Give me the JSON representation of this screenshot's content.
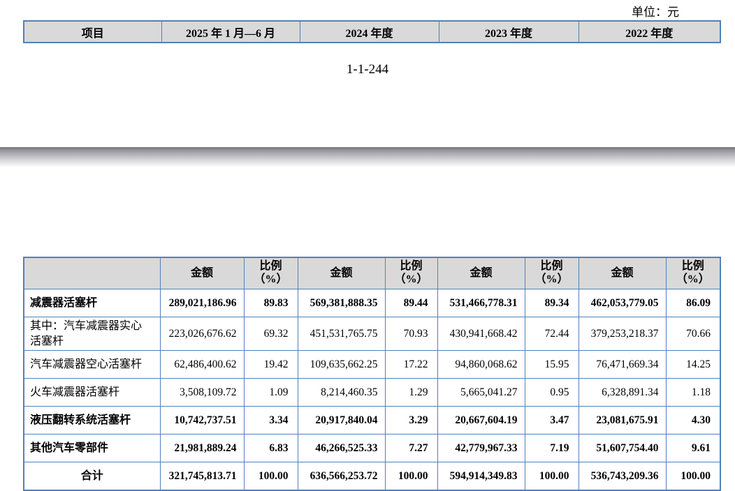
{
  "unit_label": "单位：元",
  "page_number": "1-1-244",
  "colors": {
    "table_border": "#4f81bd",
    "header_bg": "#d9d9d9"
  },
  "top_table": {
    "headers": [
      "项目",
      "2025 年 1 月—6 月",
      "2024 年度",
      "2023 年度",
      "2022 年度"
    ]
  },
  "main_table": {
    "amount_label": "金额",
    "ratio_label_line1": "比例",
    "ratio_label_line2": "（%）",
    "rows": [
      {
        "label": "减震器活塞杆",
        "bold": true,
        "center": false,
        "values": [
          "289,021,186.96",
          "89.83",
          "569,381,888.35",
          "89.44",
          "531,466,778.31",
          "89.34",
          "462,053,779.05",
          "86.09"
        ]
      },
      {
        "label": "其中：汽车减震器实心活塞杆",
        "bold": false,
        "center": false,
        "values": [
          "223,026,676.62",
          "69.32",
          "451,531,765.75",
          "70.93",
          "430,941,668.42",
          "72.44",
          "379,253,218.37",
          "70.66"
        ]
      },
      {
        "label": "汽车减震器空心活塞杆",
        "bold": false,
        "center": false,
        "values": [
          "62,486,400.62",
          "19.42",
          "109,635,662.25",
          "17.22",
          "94,860,068.62",
          "15.95",
          "76,471,669.34",
          "14.25"
        ]
      },
      {
        "label": "火车减震器活塞杆",
        "bold": false,
        "center": false,
        "values": [
          "3,508,109.72",
          "1.09",
          "8,214,460.35",
          "1.29",
          "5,665,041.27",
          "0.95",
          "6,328,891.34",
          "1.18"
        ]
      },
      {
        "label": "液压翻转系统活塞杆",
        "bold": true,
        "center": false,
        "values": [
          "10,742,737.51",
          "3.34",
          "20,917,840.04",
          "3.29",
          "20,667,604.19",
          "3.47",
          "23,081,675.91",
          "4.30"
        ]
      },
      {
        "label": "其他汽车零部件",
        "bold": true,
        "center": false,
        "values": [
          "21,981,889.24",
          "6.83",
          "46,266,525.33",
          "7.27",
          "42,779,967.33",
          "7.19",
          "51,607,754.40",
          "9.61"
        ]
      },
      {
        "label": "合计",
        "bold": true,
        "center": true,
        "values": [
          "321,745,813.71",
          "100.00",
          "636,566,253.72",
          "100.00",
          "594,914,349.83",
          "100.00",
          "536,743,209.36",
          "100.00"
        ]
      }
    ]
  }
}
